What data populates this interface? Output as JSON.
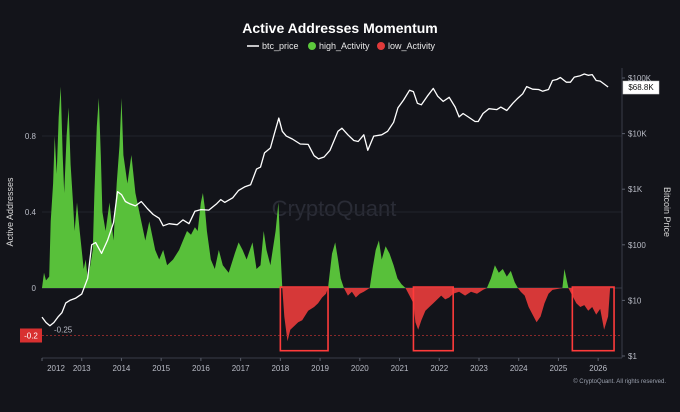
{
  "watermark": "CryptoQuant",
  "copyright": "© CryptoQuant. All rights reserved.",
  "chart_data": {
    "type": "area",
    "title": "Active Addresses Momentum",
    "ylabel": "Active Addresses",
    "y2label": "Bitcoin Price",
    "ylim": [
      -0.3,
      1.1
    ],
    "y2scale": "log",
    "y2lim": [
      1,
      140000
    ],
    "xlim": [
      2012.0,
      2026.6
    ],
    "legend": {
      "placement": "top-center"
    },
    "y_ticks": [
      {
        "value": 0.8,
        "label": "0.8"
      },
      {
        "value": 0.4,
        "label": "0.4"
      },
      {
        "value": 0,
        "label": "0"
      }
    ],
    "y2_ticks": [
      {
        "value": 100000,
        "label": "$100K"
      },
      {
        "value": 10000,
        "label": "$10K"
      },
      {
        "value": 1000,
        "label": "$1K"
      },
      {
        "value": 100,
        "label": "$100"
      },
      {
        "value": 10,
        "label": "$10"
      },
      {
        "value": 1,
        "label": "$1"
      }
    ],
    "x_ticks": [
      "2012",
      "2013",
      "2014",
      "2015",
      "2016",
      "2017",
      "2018",
      "2019",
      "2020",
      "2021",
      "2022",
      "2023",
      "2024",
      "2025",
      "2026"
    ],
    "annotations": {
      "left_badge": {
        "value": -0.25,
        "label": "-0.2"
      },
      "threshold_line": {
        "value": -0.25,
        "label": "-0.25"
      },
      "price_badge": {
        "value": 68800,
        "label": "$68.8K"
      }
    },
    "highlight_boxes": [
      {
        "x0": 2018.0,
        "x1": 2019.2
      },
      {
        "x0": 2021.35,
        "x1": 2022.35
      },
      {
        "x0": 2025.35,
        "x1": 2026.4
      }
    ],
    "series": [
      {
        "name": "btc_price",
        "color": "#ffffff",
        "axis": "right",
        "points": [
          [
            2012.0,
            5
          ],
          [
            2012.1,
            4
          ],
          [
            2012.2,
            3.5
          ],
          [
            2012.3,
            4
          ],
          [
            2012.4,
            5
          ],
          [
            2012.5,
            6
          ],
          [
            2012.6,
            9
          ],
          [
            2012.7,
            10
          ],
          [
            2012.85,
            11
          ],
          [
            2013.0,
            13
          ],
          [
            2013.15,
            25
          ],
          [
            2013.25,
            100
          ],
          [
            2013.35,
            110
          ],
          [
            2013.5,
            70
          ],
          [
            2013.65,
            120
          ],
          [
            2013.8,
            250
          ],
          [
            2013.9,
            900
          ],
          [
            2014.0,
            800
          ],
          [
            2014.1,
            600
          ],
          [
            2014.2,
            550
          ],
          [
            2014.35,
            500
          ],
          [
            2014.5,
            600
          ],
          [
            2014.65,
            450
          ],
          [
            2014.8,
            350
          ],
          [
            2014.95,
            300
          ],
          [
            2015.05,
            220
          ],
          [
            2015.2,
            240
          ],
          [
            2015.4,
            230
          ],
          [
            2015.55,
            280
          ],
          [
            2015.7,
            240
          ],
          [
            2015.85,
            400
          ],
          [
            2016.0,
            430
          ],
          [
            2016.2,
            420
          ],
          [
            2016.4,
            550
          ],
          [
            2016.5,
            650
          ],
          [
            2016.6,
            580
          ],
          [
            2016.8,
            700
          ],
          [
            2016.95,
            950
          ],
          [
            2017.1,
            1100
          ],
          [
            2017.25,
            1200
          ],
          [
            2017.4,
            2300
          ],
          [
            2017.5,
            2500
          ],
          [
            2017.6,
            4500
          ],
          [
            2017.75,
            5500
          ],
          [
            2017.85,
            10000
          ],
          [
            2017.96,
            19000
          ],
          [
            2018.05,
            11000
          ],
          [
            2018.15,
            9000
          ],
          [
            2018.3,
            8000
          ],
          [
            2018.5,
            6500
          ],
          [
            2018.7,
            6400
          ],
          [
            2018.85,
            4000
          ],
          [
            2018.96,
            3500
          ],
          [
            2019.1,
            3800
          ],
          [
            2019.25,
            5000
          ],
          [
            2019.45,
            11000
          ],
          [
            2019.55,
            12500
          ],
          [
            2019.7,
            9500
          ],
          [
            2019.85,
            7500
          ],
          [
            2019.96,
            7200
          ],
          [
            2020.1,
            9500
          ],
          [
            2020.2,
            5000
          ],
          [
            2020.35,
            9000
          ],
          [
            2020.55,
            9500
          ],
          [
            2020.7,
            11000
          ],
          [
            2020.85,
            16000
          ],
          [
            2020.96,
            29000
          ],
          [
            2021.1,
            40000
          ],
          [
            2021.25,
            60000
          ],
          [
            2021.35,
            57000
          ],
          [
            2021.45,
            35000
          ],
          [
            2021.55,
            33000
          ],
          [
            2021.7,
            47000
          ],
          [
            2021.85,
            65000
          ],
          [
            2021.96,
            47000
          ],
          [
            2022.1,
            38000
          ],
          [
            2022.25,
            45000
          ],
          [
            2022.4,
            30000
          ],
          [
            2022.5,
            20000
          ],
          [
            2022.6,
            23000
          ],
          [
            2022.75,
            19500
          ],
          [
            2022.9,
            16500
          ],
          [
            2022.98,
            16500
          ],
          [
            2023.1,
            23000
          ],
          [
            2023.25,
            28000
          ],
          [
            2023.45,
            27000
          ],
          [
            2023.55,
            30000
          ],
          [
            2023.7,
            26000
          ],
          [
            2023.85,
            35000
          ],
          [
            2023.96,
            42000
          ],
          [
            2024.1,
            52000
          ],
          [
            2024.2,
            70000
          ],
          [
            2024.35,
            63000
          ],
          [
            2024.5,
            62000
          ],
          [
            2024.6,
            58000
          ],
          [
            2024.75,
            62000
          ],
          [
            2024.85,
            90000
          ],
          [
            2024.96,
            94000
          ],
          [
            2025.05,
            102000
          ],
          [
            2025.2,
            84000
          ],
          [
            2025.3,
            84000
          ],
          [
            2025.4,
            104000
          ],
          [
            2025.55,
            110000
          ],
          [
            2025.65,
            118000
          ],
          [
            2025.75,
            112000
          ],
          [
            2025.85,
            115000
          ],
          [
            2025.95,
            90000
          ],
          [
            2026.05,
            88000
          ],
          [
            2026.15,
            78000
          ],
          [
            2026.25,
            68800
          ]
        ]
      },
      {
        "name": "high_Activity",
        "color": "#5cc93c",
        "axis": "left",
        "points": [
          [
            2012.0,
            0
          ],
          [
            2012.05,
            0.08
          ],
          [
            2012.1,
            0.04
          ],
          [
            2012.18,
            0.06
          ],
          [
            2012.22,
            0.35
          ],
          [
            2012.28,
            0.55
          ],
          [
            2012.32,
            0.8
          ],
          [
            2012.37,
            0.6
          ],
          [
            2012.42,
            0.9
          ],
          [
            2012.47,
            1.06
          ],
          [
            2012.52,
            0.7
          ],
          [
            2012.56,
            0.5
          ],
          [
            2012.62,
            0.8
          ],
          [
            2012.67,
            0.95
          ],
          [
            2012.72,
            0.65
          ],
          [
            2012.78,
            0.45
          ],
          [
            2012.82,
            0.3
          ],
          [
            2012.88,
            0.45
          ],
          [
            2012.95,
            0.3
          ],
          [
            2013.0,
            0.2
          ],
          [
            2013.05,
            0.1
          ],
          [
            2013.1,
            0.15
          ],
          [
            2013.15,
            0.05
          ],
          [
            2013.2,
            0.1
          ],
          [
            2013.28,
            0.2
          ],
          [
            2013.32,
            0.5
          ],
          [
            2013.38,
            0.85
          ],
          [
            2013.43,
            1.0
          ],
          [
            2013.48,
            0.7
          ],
          [
            2013.52,
            0.4
          ],
          [
            2013.6,
            0.3
          ],
          [
            2013.7,
            0.45
          ],
          [
            2013.8,
            0.25
          ],
          [
            2013.88,
            0.55
          ],
          [
            2013.95,
            0.75
          ],
          [
            2014.0,
            1.0
          ],
          [
            2014.05,
            0.7
          ],
          [
            2014.15,
            0.55
          ],
          [
            2014.25,
            0.7
          ],
          [
            2014.35,
            0.5
          ],
          [
            2014.5,
            0.35
          ],
          [
            2014.6,
            0.25
          ],
          [
            2014.7,
            0.35
          ],
          [
            2014.85,
            0.2
          ],
          [
            2014.95,
            0.15
          ],
          [
            2015.05,
            0.2
          ],
          [
            2015.15,
            0.12
          ],
          [
            2015.3,
            0.15
          ],
          [
            2015.45,
            0.2
          ],
          [
            2015.55,
            0.25
          ],
          [
            2015.65,
            0.3
          ],
          [
            2015.75,
            0.28
          ],
          [
            2015.85,
            0.32
          ],
          [
            2015.92,
            0.3
          ],
          [
            2016.0,
            0.45
          ],
          [
            2016.05,
            0.5
          ],
          [
            2016.1,
            0.42
          ],
          [
            2016.15,
            0.3
          ],
          [
            2016.25,
            0.15
          ],
          [
            2016.35,
            0.1
          ],
          [
            2016.45,
            0.2
          ],
          [
            2016.55,
            0.12
          ],
          [
            2016.7,
            0.08
          ],
          [
            2016.85,
            0.18
          ],
          [
            2016.95,
            0.24
          ],
          [
            2017.05,
            0.2
          ],
          [
            2017.15,
            0.15
          ],
          [
            2017.3,
            0.24
          ],
          [
            2017.4,
            0.1
          ],
          [
            2017.5,
            0.12
          ],
          [
            2017.58,
            0.3
          ],
          [
            2017.65,
            0.2
          ],
          [
            2017.75,
            0.12
          ],
          [
            2017.88,
            0.3
          ],
          [
            2017.95,
            0.45
          ],
          [
            2018.0,
            0.2
          ],
          [
            2018.05,
            0
          ],
          [
            2019.2,
            0
          ],
          [
            2019.3,
            0.18
          ],
          [
            2019.38,
            0.24
          ],
          [
            2019.45,
            0.15
          ],
          [
            2019.52,
            0.05
          ],
          [
            2019.6,
            0
          ],
          [
            2020.25,
            0
          ],
          [
            2020.32,
            0.1
          ],
          [
            2020.4,
            0.2
          ],
          [
            2020.48,
            0.25
          ],
          [
            2020.55,
            0.15
          ],
          [
            2020.65,
            0.22
          ],
          [
            2020.75,
            0.18
          ],
          [
            2020.85,
            0.12
          ],
          [
            2020.95,
            0.05
          ],
          [
            2021.05,
            0.02
          ],
          [
            2021.15,
            0
          ],
          [
            2023.2,
            0
          ],
          [
            2023.3,
            0.05
          ],
          [
            2023.4,
            0.12
          ],
          [
            2023.5,
            0.08
          ],
          [
            2023.6,
            0.1
          ],
          [
            2023.7,
            0.06
          ],
          [
            2023.8,
            0.09
          ],
          [
            2023.9,
            0.03
          ],
          [
            2023.98,
            0
          ],
          [
            2025.1,
            0
          ],
          [
            2025.15,
            0.1
          ],
          [
            2025.2,
            0.05
          ],
          [
            2025.25,
            0
          ]
        ]
      },
      {
        "name": "low_Activity",
        "color": "#e03a3a",
        "axis": "left",
        "points": [
          [
            2018.05,
            0
          ],
          [
            2018.1,
            -0.15
          ],
          [
            2018.18,
            -0.28
          ],
          [
            2018.25,
            -0.22
          ],
          [
            2018.35,
            -0.2
          ],
          [
            2018.45,
            -0.18
          ],
          [
            2018.55,
            -0.17
          ],
          [
            2018.7,
            -0.12
          ],
          [
            2018.85,
            -0.1
          ],
          [
            2018.95,
            -0.08
          ],
          [
            2019.05,
            -0.05
          ],
          [
            2019.15,
            -0.03
          ],
          [
            2019.2,
            0
          ],
          [
            2019.6,
            0
          ],
          [
            2019.7,
            -0.04
          ],
          [
            2019.8,
            -0.02
          ],
          [
            2019.9,
            -0.05
          ],
          [
            2020.0,
            -0.03
          ],
          [
            2020.1,
            -0.02
          ],
          [
            2020.25,
            0
          ],
          [
            2021.15,
            0
          ],
          [
            2021.25,
            -0.04
          ],
          [
            2021.35,
            -0.08
          ],
          [
            2021.4,
            -0.18
          ],
          [
            2021.47,
            -0.22
          ],
          [
            2021.55,
            -0.17
          ],
          [
            2021.65,
            -0.12
          ],
          [
            2021.75,
            -0.1
          ],
          [
            2021.85,
            -0.08
          ],
          [
            2021.95,
            -0.06
          ],
          [
            2022.05,
            -0.04
          ],
          [
            2022.15,
            -0.06
          ],
          [
            2022.25,
            -0.05
          ],
          [
            2022.35,
            -0.03
          ],
          [
            2022.5,
            -0.02
          ],
          [
            2022.65,
            -0.04
          ],
          [
            2022.8,
            -0.02
          ],
          [
            2022.95,
            -0.03
          ],
          [
            2023.1,
            -0.01
          ],
          [
            2023.2,
            0
          ],
          [
            2023.98,
            0
          ],
          [
            2024.05,
            -0.02
          ],
          [
            2024.15,
            -0.04
          ],
          [
            2024.25,
            -0.1
          ],
          [
            2024.35,
            -0.14
          ],
          [
            2024.45,
            -0.18
          ],
          [
            2024.55,
            -0.15
          ],
          [
            2024.65,
            -0.08
          ],
          [
            2024.75,
            -0.03
          ],
          [
            2024.85,
            -0.01
          ],
          [
            2025.1,
            0
          ],
          [
            2025.25,
            0
          ],
          [
            2025.35,
            -0.04
          ],
          [
            2025.45,
            -0.08
          ],
          [
            2025.55,
            -0.1
          ],
          [
            2025.65,
            -0.09
          ],
          [
            2025.75,
            -0.12
          ],
          [
            2025.85,
            -0.1
          ],
          [
            2025.95,
            -0.14
          ],
          [
            2026.05,
            -0.11
          ],
          [
            2026.15,
            -0.22
          ],
          [
            2026.25,
            -0.15
          ],
          [
            2026.3,
            0
          ]
        ]
      }
    ]
  }
}
